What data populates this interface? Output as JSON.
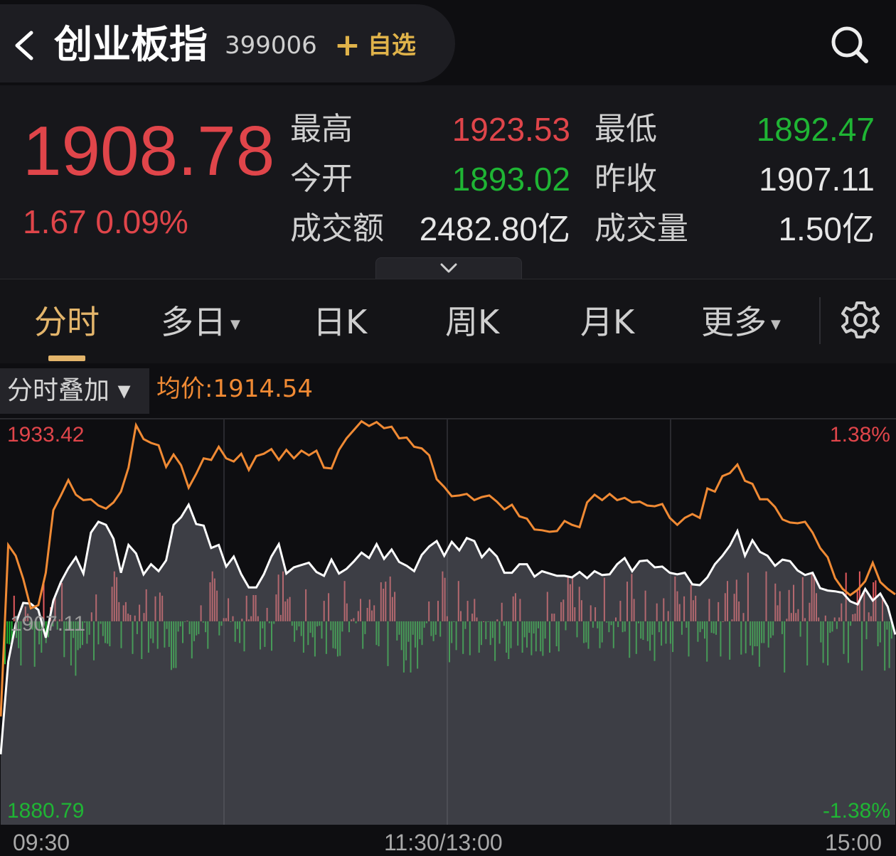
{
  "header": {
    "title": "创业板指",
    "code": "399006",
    "add_label": "自选"
  },
  "quote": {
    "price": "1908.78",
    "change": "1.67",
    "change_pct": "0.09%",
    "high_label": "最高",
    "high": "1923.53",
    "low_label": "最低",
    "low": "1892.47",
    "open_label": "今开",
    "open": "1893.02",
    "prev_close_label": "昨收",
    "prev_close": "1907.11",
    "turnover_label": "成交额",
    "turnover": "2482.80亿",
    "volume_label": "成交量",
    "volume": "1.50亿"
  },
  "tabs": [
    {
      "label": "分时",
      "active": true
    },
    {
      "label": "多日",
      "dropdown": true
    },
    {
      "label": "日K"
    },
    {
      "label": "周K"
    },
    {
      "label": "月K"
    },
    {
      "label": "更多",
      "dropdown": true
    }
  ],
  "overlay": {
    "label": "分时叠加 ▾",
    "avg_label": "均价:1914.54"
  },
  "chart_data": {
    "type": "line",
    "y_max_label": "1933.42",
    "y_mid_label": "1907.11",
    "y_min_label": "1880.79",
    "pct_max_label": "1.38%",
    "pct_min_label": "-1.38%",
    "ylim": [
      1880.79,
      1933.42
    ],
    "baseline": 1907.11,
    "x_labels": [
      "09:30",
      "11:30/13:00",
      "15:00"
    ],
    "series": [
      {
        "color": "#ffffff",
        "values": [
          1889.9,
          1901.9,
          1906.8,
          1909.5,
          1909.4,
          1908.6,
          1905.0,
          1909.8,
          1912.2,
          1914.0,
          1915.4,
          1913.3,
          1918.6,
          1920.0,
          1919.6,
          1917.8,
          1913.4,
          1917.0,
          1915.9,
          1913.2,
          1914.5,
          1913.6,
          1915.0,
          1919.6,
          1920.6,
          1922.2,
          1919.7,
          1919.5,
          1916.6,
          1917.0,
          1914.2,
          1915.5,
          1913.2,
          1911.5,
          1911.5,
          1913.2,
          1915.5,
          1917.1,
          1913.3,
          1914.1,
          1914.4,
          1914.7,
          1913.5,
          1913.0,
          1915.1,
          1913.3,
          1913.9,
          1914.9,
          1916.0,
          1915.3,
          1917.1,
          1915.2,
          1916.4,
          1914.8,
          1914.3,
          1913.6,
          1915.7,
          1916.8,
          1917.5,
          1915.6,
          1917.4,
          1916.3,
          1917.9,
          1917.5,
          1915.4,
          1916.5,
          1915.5,
          1913.4,
          1913.4,
          1914.5,
          1914.5,
          1912.9,
          1913.6,
          1913.3,
          1913.0,
          1913.0,
          1912.8,
          1913.5,
          1912.7,
          1913.6,
          1913.1,
          1913.2,
          1914.5,
          1915.3,
          1913.6,
          1914.9,
          1915.0,
          1914.1,
          1914.2,
          1913.4,
          1913.2,
          1913.4,
          1911.9,
          1911.8,
          1912.8,
          1914.5,
          1915.6,
          1916.9,
          1918.8,
          1915.6,
          1917.6,
          1916.1,
          1915.6,
          1914.3,
          1915.1,
          1914.9,
          1913.7,
          1913.1,
          1913.4,
          1911.4,
          1911.1,
          1911.0,
          1910.8,
          1909.7,
          1909.3,
          1911.3,
          1909.8,
          1910.7,
          1909.0,
          1905.4
        ]
      },
      {
        "color": "#f08a34",
        "values": [
          1894.8,
          1917.0,
          1915.6,
          1912.6,
          1908.8,
          1909.2,
          1913.4,
          1921.5,
          1923.4,
          1925.4,
          1923.5,
          1922.8,
          1922.9,
          1922.1,
          1921.7,
          1922.5,
          1923.9,
          1927.0,
          1932.5,
          1930.7,
          1930.2,
          1929.9,
          1927.1,
          1928.7,
          1927.3,
          1924.4,
          1926.2,
          1928.2,
          1928.0,
          1929.7,
          1928.2,
          1927.8,
          1928.8,
          1926.7,
          1928.5,
          1928.8,
          1929.4,
          1928.0,
          1929.3,
          1928.2,
          1929.2,
          1928.6,
          1929.2,
          1927.0,
          1926.9,
          1929.3,
          1930.8,
          1931.9,
          1933.0,
          1932.4,
          1932.9,
          1932.1,
          1932.3,
          1930.8,
          1930.9,
          1929.7,
          1929.5,
          1928.6,
          1925.5,
          1924.5,
          1923.3,
          1923.4,
          1923.6,
          1922.8,
          1923.2,
          1923.4,
          1922.6,
          1921.6,
          1922.2,
          1920.7,
          1920.4,
          1919.0,
          1918.9,
          1918.7,
          1918.8,
          1920.1,
          1919.6,
          1919.3,
          1922.5,
          1923.5,
          1922.8,
          1923.6,
          1922.8,
          1923.1,
          1922.5,
          1922.6,
          1922.1,
          1922.0,
          1922.3,
          1920.5,
          1919.6,
          1920.5,
          1921.0,
          1920.5,
          1924.3,
          1923.9,
          1925.9,
          1926.3,
          1927.4,
          1925.3,
          1924.9,
          1922.9,
          1922.9,
          1921.9,
          1920.3,
          1919.9,
          1919.8,
          1920.0,
          1918.6,
          1916.6,
          1915.4,
          1912.7,
          1911.3,
          1910.5,
          1911.2,
          1912.3,
          1914.7,
          1912.2,
          1911.3,
          1910.6
        ]
      }
    ],
    "volume_bars": [
      -0.67,
      -0.35,
      -0.36,
      -0.36,
      0.4,
      -0.26,
      -0.42,
      -0.69,
      0.03,
      0.23,
      0.12,
      -0.09,
      -0.13,
      -0.71,
      -0.11,
      -0.36,
      -0.49,
      0.62,
      -0.34,
      -0.25,
      0.22,
      -0.08,
      0.38,
      -0.13,
      0.03,
      0.6,
      -0.56,
      -0.15,
      -0.12,
      -0.69,
      -0.26,
      -0.85,
      -0.45,
      -0.42,
      -0.37,
      -0.02,
      -0.35,
      -0.21,
      0.14,
      -0.61,
      0.42,
      -0.36,
      -0.04,
      -0.23,
      -0.34,
      -0.35,
      -0.39,
      0.54,
      0.78,
      0.69,
      0.3,
      -0.42,
      0.25,
      0.3,
      0.12,
      0.1,
      -0.51,
      0.09,
      -0.2,
      0.26,
      -0.59,
      0.13,
      0.5,
      -0.49,
      -0.27,
      -0.34,
      0.39,
      -0.43,
      0.45,
      0.4,
      -0.41,
      -0.12,
      -0.4,
      -0.76,
      -0.73,
      -0.73,
      -0.16,
      -0.08,
      -0.34,
      -0.01,
      0.01,
      -0.2,
      -0.58,
      -0.31,
      -0.22,
      -0.2,
      0.25,
      -0.02,
      -0.17,
      -0.43,
      0.61,
      0.78,
      0.67,
      0.48,
      -0.22,
      -0.07,
      0.05,
      0.05,
      0.36,
      -0.01,
      0.08,
      -0.32,
      -0.12,
      -0.34,
      0.04,
      -0.47,
      0.4,
      0.03,
      0.08,
      0.41,
      0.41,
      0.08,
      -0.44,
      -0.11,
      -0.4,
      0.21,
      -0.03,
      -0.46,
      -0.04,
      0.42,
      0.73,
      0.1,
      0.78,
      0.31,
      0.35,
      0.38,
      -0.07,
      -0.32,
      -0.14,
      -0.08,
      -0.23,
      -0.49,
      0.5,
      -0.37,
      -0.18,
      -0.25,
      -0.55,
      -0.08,
      -0.07,
      -0.27,
      0.32,
      -0.51,
      0.44,
      -0.14,
      -0.42,
      -0.43,
      -0.55,
      -0.54,
      -0.16,
      0.63,
      0.28,
      -0.17,
      0.03,
      0.05,
      -0.03,
      0.16,
      0.35,
      -0.43,
      -0.2,
      0.21,
      0.34,
      0.17,
      0.25,
      -0.37,
      -0.39,
      0.61,
      0.51,
      0.62,
      -0.7,
      0.7,
      0.38,
      0.46,
      -0.3,
      -0.21,
      -0.45,
      -0.8,
      -0.61,
      -0.32,
      -0.8,
      -0.21,
      -0.41,
      -0.74,
      -0.28,
      -0.37,
      -0.1,
      -0.03,
      0.31,
      -0.23,
      -0.31,
      -0.21,
      0.32,
      -0.24,
      0.78,
      0.68,
      0.08,
      -0.64,
      -0.34,
      -0.01,
      -0.45,
      0.63,
      0.16,
      -0.51,
      -0.12,
      0.32,
      -0.53,
      0.12,
      0.35,
      0.06,
      -0.49,
      -0.37,
      0.0,
      -0.28,
      -0.01,
      -0.37,
      -0.26,
      -0.62,
      0.03,
      -0.35,
      0.29,
      -0.07,
      -0.49,
      -0.59,
      -0.42,
      0.39,
      0.44,
      -0.38,
      0.35,
      -0.49,
      -0.25,
      -0.41,
      -0.18,
      -0.53,
      -0.19,
      -0.47,
      -0.11,
      -0.47,
      -0.54,
      -0.27,
      0.46,
      -0.49,
      0.12,
      0.12,
      -0.39,
      -0.47,
      0.3,
      0.34,
      -0.14,
      0.7,
      0.58,
      0.68,
      0.22,
      -0.25,
      0.54,
      0.33,
      -0.34,
      -0.33,
      -0.43,
      0.25,
      -0.1,
      0.22,
      -0.11,
      -0.42,
      -0.33,
      0.68,
      -0.02,
      -0.17,
      -0.06,
      -0.42,
      0.06,
      -0.09,
      0.32,
      -0.17,
      -0.16,
      0.62,
      -0.57,
      0.74,
      0.35,
      -0.51,
      -0.03,
      -0.27,
      -0.29,
      0.48,
      -0.31,
      -0.46,
      -0.21,
      -0.62,
      0.28,
      -0.17,
      -0.38,
      0.36,
      -0.35,
      0.16,
      -0.35,
      -0.48,
      0.7,
      0.47,
      0.27,
      -0.21,
      0.39,
      -0.1,
      -0.55,
      0.57,
      0.33,
      0.4,
      -0.32,
      -0.17,
      -0.12,
      -0.27,
      -0.63,
      0.35,
      -0.18,
      -0.19,
      -0.21,
      0.3,
      -0.55,
      0.0,
      0.44,
      0.63,
      -0.6,
      0.03,
      0.43,
      0.65,
      0.31,
      -0.52,
      0.13,
      -0.5,
      0.76,
      -0.38,
      -0.53,
      -0.39,
      -0.39,
      -0.71,
      -0.34,
      -0.34,
      0.78,
      -0.41,
      -0.26,
      -0.22,
      0.59,
      0.25,
      0.47,
      -0.2,
      -0.8,
      0.04,
      0.49,
      0.13,
      0.57,
      0.13,
      0.19,
      -0.24,
      0.69,
      0.05,
      -0.69,
      0.29,
      0.76,
      0.68,
      0.44,
      0.06,
      -0.33,
      -0.65,
      0.09,
      -0.69,
      -0.18,
      -0.16,
      0.06,
      -0.12,
      0.06,
      0.28,
      -0.51,
      0.76,
      -0.65,
      -0.07,
      0.11,
      0.12,
      0.47,
      0.78,
      -0.77,
      0.49,
      -0.28,
      0.14,
      0.08,
      0.61,
      0.64,
      -0.39,
      -0.33,
      0.35,
      -0.77,
      -0.13,
      -0.73,
      -0.27
    ]
  }
}
